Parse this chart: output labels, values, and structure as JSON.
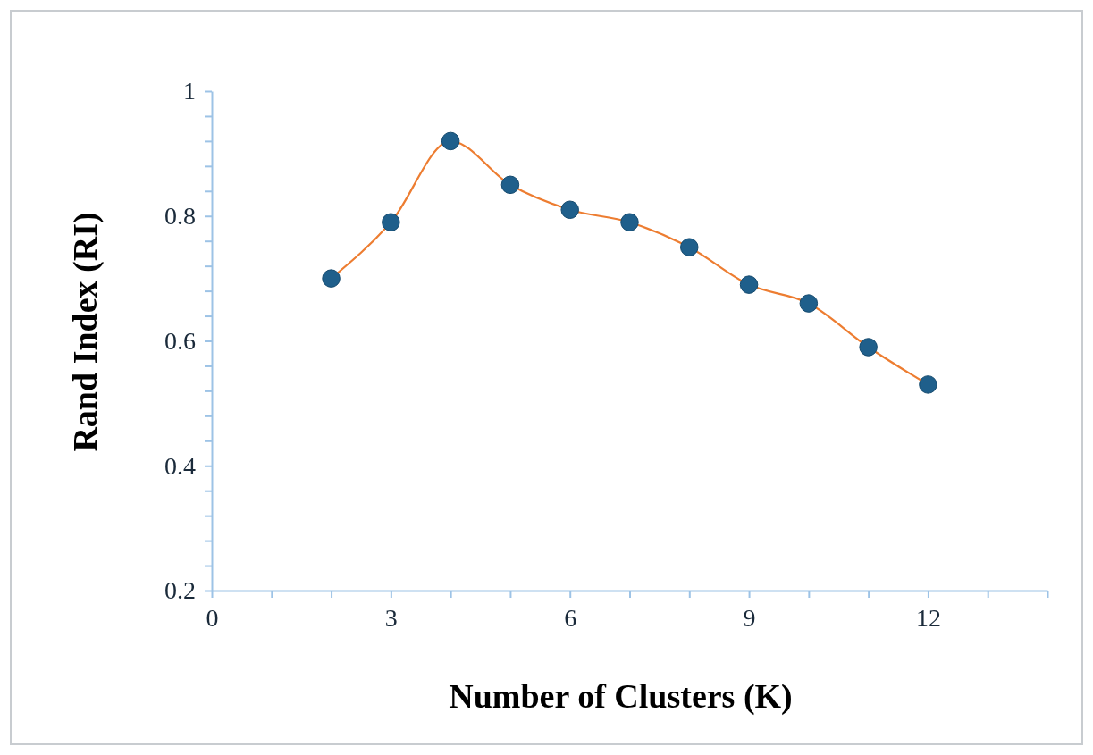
{
  "chart_data": {
    "type": "line",
    "xlabel": "Number of Clusters (K)",
    "ylabel": "Rand Index (RI)",
    "x": [
      2,
      3,
      4,
      5,
      6,
      7,
      8,
      9,
      10,
      11,
      12
    ],
    "series": [
      {
        "color": "#ed7d31",
        "colors": [
          "#1f5f8b",
          "#1f5f8b",
          "#1f5f8b",
          "#1f5f8b",
          "#1f5f8b",
          "#1f5f8b",
          "#1f5f8b",
          "#1f5f8b",
          "#1f5f8b",
          "#1f5f8b",
          "#1f5f8b"
        ],
        "values": [
          0.7,
          0.79,
          0.92,
          0.85,
          0.81,
          0.79,
          0.75,
          0.69,
          0.66,
          0.59,
          0.53
        ]
      }
    ],
    "marker": "circle",
    "line_style": "solid",
    "grid": false,
    "xlim": [
      0,
      14
    ],
    "xticks": [
      0,
      {
        "value": 1,
        "label": null
      },
      {
        "value": 2,
        "label": null
      },
      3,
      {
        "value": 4,
        "label": null
      },
      {
        "value": 5,
        "label": null
      },
      6,
      {
        "value": 7,
        "label": null
      },
      {
        "value": 8,
        "label": null
      },
      9,
      {
        "value": 10,
        "label": null
      },
      {
        "value": 11,
        "label": null
      },
      12,
      {
        "value": 13,
        "label": null
      },
      {
        "value": 14,
        "label": null
      }
    ],
    "ylim": [
      0.2,
      1
    ],
    "yticks": [
      0.2,
      {
        "value": 0.24,
        "label": null
      },
      {
        "value": 0.28,
        "label": null
      },
      {
        "value": 0.32,
        "label": null
      },
      {
        "value": 0.36,
        "label": null
      },
      0.4,
      {
        "value": 0.44,
        "label": null
      },
      {
        "value": 0.48,
        "label": null
      },
      {
        "value": 0.52,
        "label": null
      },
      {
        "value": 0.56,
        "label": null
      },
      0.6,
      {
        "value": 0.64,
        "label": null
      },
      {
        "value": 0.68,
        "label": null
      },
      {
        "value": 0.72,
        "label": null
      },
      {
        "value": 0.76,
        "label": null
      },
      0.8,
      {
        "value": 0.84,
        "label": null
      },
      {
        "value": 0.88,
        "label": null
      },
      {
        "value": 0.92,
        "label": null
      },
      {
        "value": 0.96,
        "label": null
      },
      1
    ]
  }
}
